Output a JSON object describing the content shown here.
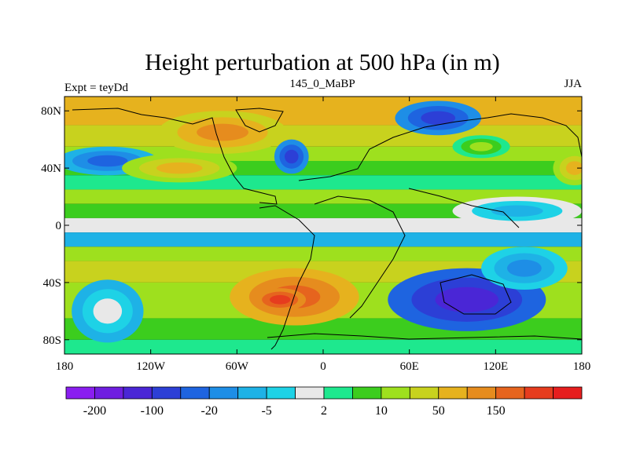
{
  "title": "Height perturbation at 500 hPa (in m)",
  "left_label": "Expt = teyDd",
  "center_label": "145_0_MaBP",
  "right_label": "JJA",
  "lat_ticks": [
    "80N",
    "40N",
    "0",
    "40S",
    "80S"
  ],
  "lat_values": [
    80,
    40,
    0,
    -40,
    -80
  ],
  "lon_ticks": [
    "180",
    "120W",
    "60W",
    "0",
    "60E",
    "120E",
    "180"
  ],
  "lon_values": [
    -180,
    -120,
    -60,
    0,
    60,
    120,
    180
  ],
  "colorbar": {
    "colors": [
      "#8a1ef0",
      "#6f1ee0",
      "#4a26d6",
      "#2c3fd6",
      "#1e64e0",
      "#1e8ee6",
      "#1eb2e6",
      "#1ed2e6",
      "#e8e8e8",
      "#1ee88e",
      "#3ccd1e",
      "#9ee01e",
      "#c8d21e",
      "#e6b21e",
      "#e68c1e",
      "#e6641e",
      "#e63c1e",
      "#e61e1e"
    ],
    "shown_labels": [
      "-200",
      "-100",
      "-20",
      "-5",
      "2",
      "10",
      "50",
      "150"
    ],
    "label_boundaries": [
      1,
      3,
      5,
      7,
      9,
      11,
      13,
      15
    ]
  },
  "map": {
    "lon_range": [
      -180,
      180
    ],
    "lat_range": [
      -90,
      90
    ],
    "features": [
      {
        "name": "low-north-atlantic",
        "lon": -150,
        "lat": 45,
        "rlon": 35,
        "rlat": 10,
        "level": 4
      },
      {
        "name": "low-west-europe",
        "lon": -22,
        "lat": 48,
        "rlon": 12,
        "rlat": 12,
        "level": 3
      },
      {
        "name": "low-arctic-east",
        "lon": 80,
        "lat": 75,
        "rlon": 30,
        "rlat": 12,
        "level": 3
      },
      {
        "name": "low-equatorial-east",
        "lon": 135,
        "lat": 10,
        "rlon": 45,
        "rlat": 10,
        "level": 6
      },
      {
        "name": "low-southern-pacific",
        "lon": 100,
        "lat": -52,
        "rlon": 55,
        "rlat": 22,
        "level": 2
      },
      {
        "name": "low-southern-indian",
        "lon": 140,
        "lat": -30,
        "rlon": 30,
        "rlat": 15,
        "level": 5
      },
      {
        "name": "neutral-southwest",
        "lon": -150,
        "lat": -60,
        "rlon": 25,
        "rlat": 22,
        "level": 8
      },
      {
        "name": "high-north-central",
        "lon": -70,
        "lat": 65,
        "rlon": 45,
        "rlat": 15,
        "level": 14
      },
      {
        "name": "high-north-midlat",
        "lon": -100,
        "lat": 40,
        "rlon": 40,
        "rlat": 10,
        "level": 13
      },
      {
        "name": "high-south-atlantic",
        "lon": -20,
        "lat": -50,
        "rlon": 45,
        "rlat": 20,
        "level": 15
      },
      {
        "name": "high-south-core",
        "lon": -30,
        "lat": -52,
        "rlon": 18,
        "rlat": 8,
        "level": 16
      },
      {
        "name": "high-northeast",
        "lon": 110,
        "lat": 55,
        "rlon": 20,
        "rlat": 8,
        "level": 11
      },
      {
        "name": "high-far-east",
        "lon": 175,
        "lat": 40,
        "rlon": 15,
        "rlat": 12,
        "level": 13
      }
    ]
  }
}
